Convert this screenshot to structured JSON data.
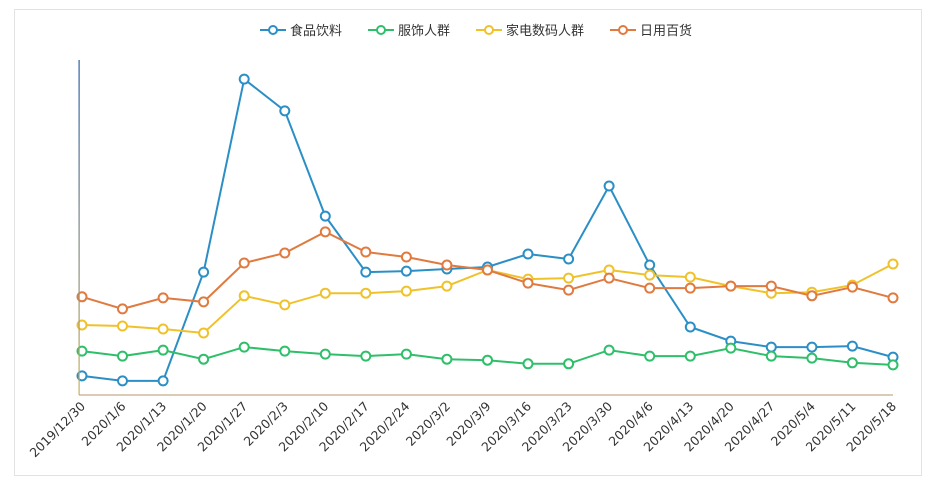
{
  "chart_data": {
    "type": "line",
    "title": "",
    "xlabel": "",
    "ylabel": "",
    "y_ticks_visible": false,
    "y_scale_note": "relative index; axis baseline = 0, axis top = 100 (no tick labels shown)",
    "ylim": [
      0,
      100
    ],
    "grid": false,
    "legend_position": "top-center",
    "categories": [
      "2019/12/30",
      "2020/1/6",
      "2020/1/13",
      "2020/1/20",
      "2020/1/27",
      "2020/2/3",
      "2020/2/10",
      "2020/2/17",
      "2020/2/24",
      "2020/3/2",
      "2020/3/9",
      "2020/3/16",
      "2020/3/23",
      "2020/3/30",
      "2020/4/6",
      "2020/4/13",
      "2020/4/20",
      "2020/4/27",
      "2020/5/4",
      "2020/5/11",
      "2020/5/18"
    ],
    "series": [
      {
        "name": "食品饮料",
        "color": "#2b8fc6",
        "values": [
          5.7,
          4.2,
          4.2,
          36.7,
          94.3,
          84.8,
          53.4,
          36.7,
          37.0,
          37.6,
          38.2,
          42.1,
          40.6,
          62.4,
          38.8,
          20.3,
          16.1,
          14.3,
          14.3,
          14.6,
          11.3
        ]
      },
      {
        "name": "服饰人群",
        "color": "#2fbf6a",
        "values": [
          13.1,
          11.6,
          13.4,
          10.7,
          14.3,
          13.1,
          12.2,
          11.6,
          12.2,
          10.7,
          10.4,
          9.3,
          9.3,
          13.4,
          11.6,
          11.6,
          14.0,
          11.6,
          11.0,
          9.6,
          9.0
        ]
      },
      {
        "name": "家电数码人群",
        "color": "#f0c22a",
        "values": [
          20.9,
          20.6,
          19.7,
          18.5,
          29.6,
          26.9,
          30.4,
          30.4,
          31.0,
          32.5,
          37.3,
          34.6,
          34.9,
          37.3,
          35.8,
          35.2,
          32.5,
          30.4,
          30.7,
          32.8,
          39.1
        ]
      },
      {
        "name": "日用百货",
        "color": "#e07a3f",
        "values": [
          29.3,
          25.7,
          29.0,
          27.8,
          39.4,
          42.4,
          48.7,
          42.7,
          41.2,
          38.8,
          37.3,
          33.4,
          31.3,
          34.9,
          31.9,
          31.9,
          32.5,
          32.5,
          29.6,
          32.2,
          29.0
        ]
      }
    ]
  },
  "legend": {
    "items": [
      {
        "label": "食品饮料",
        "color": "#2b8fc6"
      },
      {
        "label": "服饰人群",
        "color": "#2fbf6a"
      },
      {
        "label": "家电数码人群",
        "color": "#f0c22a"
      },
      {
        "label": "日用百货",
        "color": "#e07a3f"
      }
    ]
  },
  "axis": {
    "left_color_top": "#2b5fa8",
    "left_color_bottom": "#c9b060",
    "bottom_color": "#b49a6a"
  }
}
